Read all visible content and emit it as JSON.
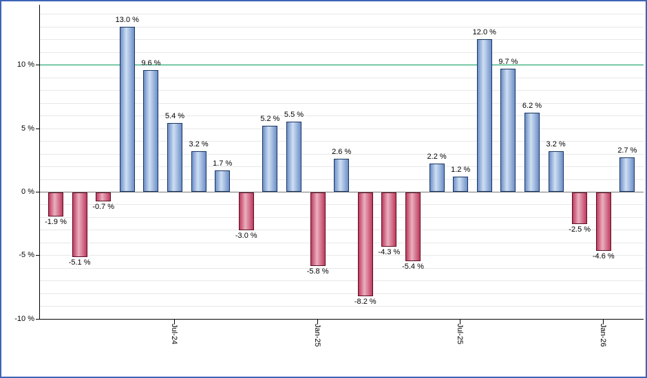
{
  "chart": {
    "background": "#ffffff",
    "border_color": "#3d64b8"
  },
  "chart_data": {
    "type": "bar",
    "title": "",
    "legend": "none",
    "values": [
      -1.9,
      -5.1,
      -0.7,
      13.0,
      9.6,
      5.4,
      3.2,
      1.7,
      -3.0,
      5.2,
      5.5,
      -5.8,
      2.6,
      -8.2,
      -4.3,
      -5.4,
      2.2,
      1.2,
      12.0,
      9.7,
      6.2,
      3.2,
      -2.5,
      -4.6,
      2.7
    ],
    "bar_labels": [
      "-1.9 %",
      "-5.1 %",
      "-0.7 %",
      "13.0 %",
      "9.6 %",
      "5.4 %",
      "3.2 %",
      "1.7 %",
      "-3.0 %",
      "5.2 %",
      "5.5 %",
      "-5.8 %",
      "2.6 %",
      "-8.2 %",
      "-4.3 %",
      "-5.4 %",
      "2.2 %",
      "1.2 %",
      "12.0 %",
      "9.7 %",
      "6.2 %",
      "3.2 %",
      "-2.5 %",
      "-4.6 %",
      "2.7 %"
    ],
    "y_axis": {
      "ticks": [
        10,
        5,
        0,
        -5,
        -10
      ],
      "tick_labels": [
        "10 %",
        "5 %",
        "0 %",
        "-5 %",
        "-10 %"
      ],
      "range": [
        -10.1,
        14.7
      ]
    },
    "x_axis": {
      "tick_labels": [
        {
          "bar_index": 5,
          "label": "Jul-24"
        },
        {
          "bar_index": 11,
          "label": "Jan-25"
        },
        {
          "bar_index": 17,
          "label": "Jul-25"
        },
        {
          "bar_index": 23,
          "label": "Jan-26"
        }
      ]
    },
    "reference_line": {
      "value": 10,
      "color": "#009957"
    },
    "grid": {
      "horizontal_interval_pct": 1,
      "color": "#e7e7e7",
      "zero_line_color": "#777777"
    },
    "colors": {
      "positive": {
        "fill": "#6d8fc9",
        "highlight": "#cedff2",
        "border": "#17335e"
      },
      "negative": {
        "fill": "#bf3a5e",
        "highlight": "#eab0bf",
        "border": "#5c0e23"
      },
      "axis": "#000000",
      "label_text": "#000000"
    }
  }
}
